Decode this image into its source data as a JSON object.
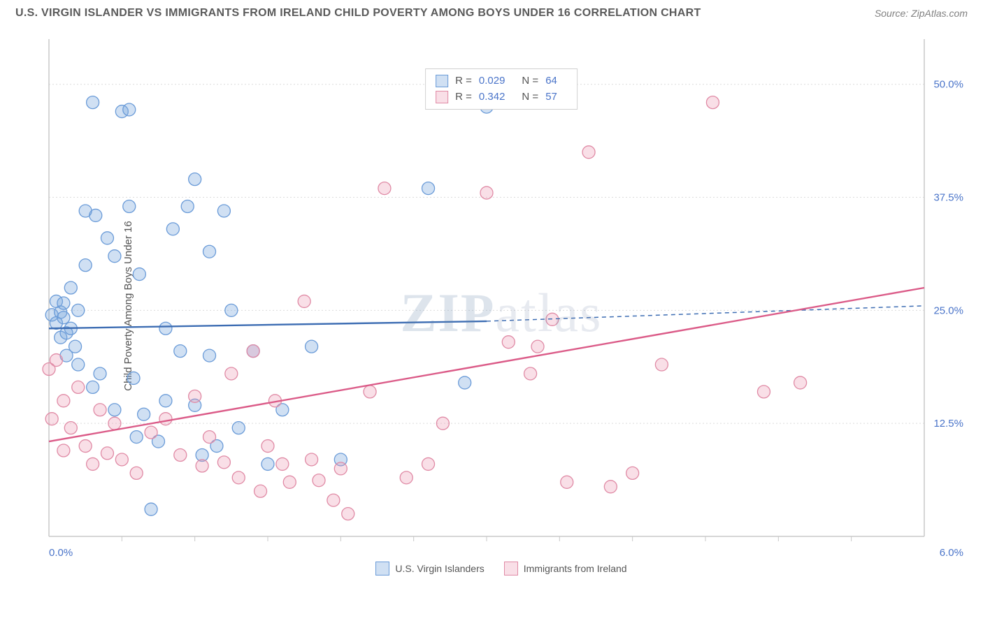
{
  "header": {
    "title": "U.S. VIRGIN ISLANDER VS IMMIGRANTS FROM IRELAND CHILD POVERTY AMONG BOYS UNDER 16 CORRELATION CHART",
    "source": "Source: ZipAtlas.com"
  },
  "chart": {
    "type": "scatter",
    "ylabel": "Child Poverty Among Boys Under 16",
    "xlim": [
      0.0,
      6.0
    ],
    "ylim": [
      0.0,
      55.0
    ],
    "xtick_labels": [
      "0.0%",
      "6.0%"
    ],
    "xtick_positions": [
      0.0,
      6.0
    ],
    "xtick_minor": [
      0.5,
      1.0,
      1.5,
      2.0,
      2.5,
      3.0,
      3.5,
      4.0,
      4.5,
      5.0,
      5.5
    ],
    "ytick_labels": [
      "12.5%",
      "25.0%",
      "37.5%",
      "50.0%"
    ],
    "ytick_positions": [
      12.5,
      25.0,
      37.5,
      50.0
    ],
    "grid_color": "#dcdcdc",
    "grid_dash": "2,3",
    "axis_color": "#c8c8c8",
    "axis_label_color": "#4a74c9",
    "background_color": "#ffffff",
    "marker_radius": 9,
    "marker_stroke_width": 1.3,
    "series": [
      {
        "name": "U.S. Virgin Islanders",
        "fill": "rgba(120,165,220,0.35)",
        "stroke": "#6a9bd8",
        "line_color": "#3d6db3",
        "line_width": 2.4,
        "dash": "",
        "R": "0.029",
        "N": "64",
        "trend": {
          "x1": 0.0,
          "y1": 23.0,
          "x2": 3.0,
          "y2": 23.8,
          "x2_ext": 6.0,
          "y2_ext": 25.5
        },
        "points": [
          [
            0.02,
            24.5
          ],
          [
            0.05,
            23.6
          ],
          [
            0.05,
            26.0
          ],
          [
            0.08,
            22.0
          ],
          [
            0.08,
            24.8
          ],
          [
            0.1,
            25.8
          ],
          [
            0.1,
            24.2
          ],
          [
            0.12,
            22.5
          ],
          [
            0.12,
            20.0
          ],
          [
            0.15,
            23.0
          ],
          [
            0.15,
            27.5
          ],
          [
            0.18,
            21.0
          ],
          [
            0.2,
            19.0
          ],
          [
            0.2,
            25.0
          ],
          [
            0.25,
            36.0
          ],
          [
            0.25,
            30.0
          ],
          [
            0.3,
            16.5
          ],
          [
            0.3,
            48.0
          ],
          [
            0.32,
            35.5
          ],
          [
            0.35,
            18.0
          ],
          [
            0.4,
            33.0
          ],
          [
            0.45,
            14.0
          ],
          [
            0.45,
            31.0
          ],
          [
            0.5,
            47.0
          ],
          [
            0.55,
            47.2
          ],
          [
            0.55,
            36.5
          ],
          [
            0.58,
            17.5
          ],
          [
            0.6,
            11.0
          ],
          [
            0.62,
            29.0
          ],
          [
            0.65,
            13.5
          ],
          [
            0.7,
            3.0
          ],
          [
            0.75,
            10.5
          ],
          [
            0.8,
            23.0
          ],
          [
            0.8,
            15.0
          ],
          [
            0.85,
            34.0
          ],
          [
            0.9,
            20.5
          ],
          [
            0.95,
            36.5
          ],
          [
            1.0,
            39.5
          ],
          [
            1.0,
            14.5
          ],
          [
            1.05,
            9.0
          ],
          [
            1.1,
            20.0
          ],
          [
            1.1,
            31.5
          ],
          [
            1.15,
            10.0
          ],
          [
            1.2,
            36.0
          ],
          [
            1.25,
            25.0
          ],
          [
            1.3,
            12.0
          ],
          [
            1.4,
            20.5
          ],
          [
            1.5,
            8.0
          ],
          [
            1.6,
            14.0
          ],
          [
            1.8,
            21.0
          ],
          [
            2.0,
            8.5
          ],
          [
            2.6,
            38.5
          ],
          [
            2.85,
            17.0
          ],
          [
            3.0,
            47.5
          ]
        ]
      },
      {
        "name": "Immigrants from Ireland",
        "fill": "rgba(235,150,175,0.30)",
        "stroke": "#e08aa5",
        "line_color": "#db5b88",
        "line_width": 2.4,
        "dash": "",
        "R": "0.342",
        "N": "57",
        "trend": {
          "x1": 0.0,
          "y1": 10.5,
          "x2": 6.0,
          "y2": 27.5,
          "x2_ext": 6.0,
          "y2_ext": 27.5
        },
        "points": [
          [
            0.0,
            18.5
          ],
          [
            0.02,
            13.0
          ],
          [
            0.05,
            19.5
          ],
          [
            0.1,
            15.0
          ],
          [
            0.1,
            9.5
          ],
          [
            0.15,
            12.0
          ],
          [
            0.2,
            16.5
          ],
          [
            0.25,
            10.0
          ],
          [
            0.3,
            8.0
          ],
          [
            0.35,
            14.0
          ],
          [
            0.4,
            9.2
          ],
          [
            0.45,
            12.5
          ],
          [
            0.5,
            8.5
          ],
          [
            0.6,
            7.0
          ],
          [
            0.7,
            11.5
          ],
          [
            0.8,
            13.0
          ],
          [
            0.9,
            9.0
          ],
          [
            1.0,
            15.5
          ],
          [
            1.05,
            7.8
          ],
          [
            1.1,
            11.0
          ],
          [
            1.2,
            8.2
          ],
          [
            1.25,
            18.0
          ],
          [
            1.3,
            6.5
          ],
          [
            1.4,
            20.5
          ],
          [
            1.45,
            5.0
          ],
          [
            1.5,
            10.0
          ],
          [
            1.55,
            15.0
          ],
          [
            1.6,
            8.0
          ],
          [
            1.65,
            6.0
          ],
          [
            1.75,
            26.0
          ],
          [
            1.8,
            8.5
          ],
          [
            1.85,
            6.2
          ],
          [
            1.95,
            4.0
          ],
          [
            2.0,
            7.5
          ],
          [
            2.05,
            2.5
          ],
          [
            2.2,
            16.0
          ],
          [
            2.3,
            38.5
          ],
          [
            2.45,
            6.5
          ],
          [
            2.6,
            8.0
          ],
          [
            2.7,
            12.5
          ],
          [
            3.0,
            38.0
          ],
          [
            3.15,
            21.5
          ],
          [
            3.3,
            18.0
          ],
          [
            3.35,
            21.0
          ],
          [
            3.45,
            24.0
          ],
          [
            3.55,
            6.0
          ],
          [
            3.7,
            42.5
          ],
          [
            3.85,
            5.5
          ],
          [
            4.0,
            7.0
          ],
          [
            4.2,
            19.0
          ],
          [
            4.55,
            48.0
          ],
          [
            4.9,
            16.0
          ],
          [
            5.15,
            17.0
          ]
        ]
      }
    ],
    "legend": {
      "stats_box": true,
      "footer": true
    },
    "watermark": {
      "zip": "ZIP",
      "atlas": "atlas"
    }
  }
}
